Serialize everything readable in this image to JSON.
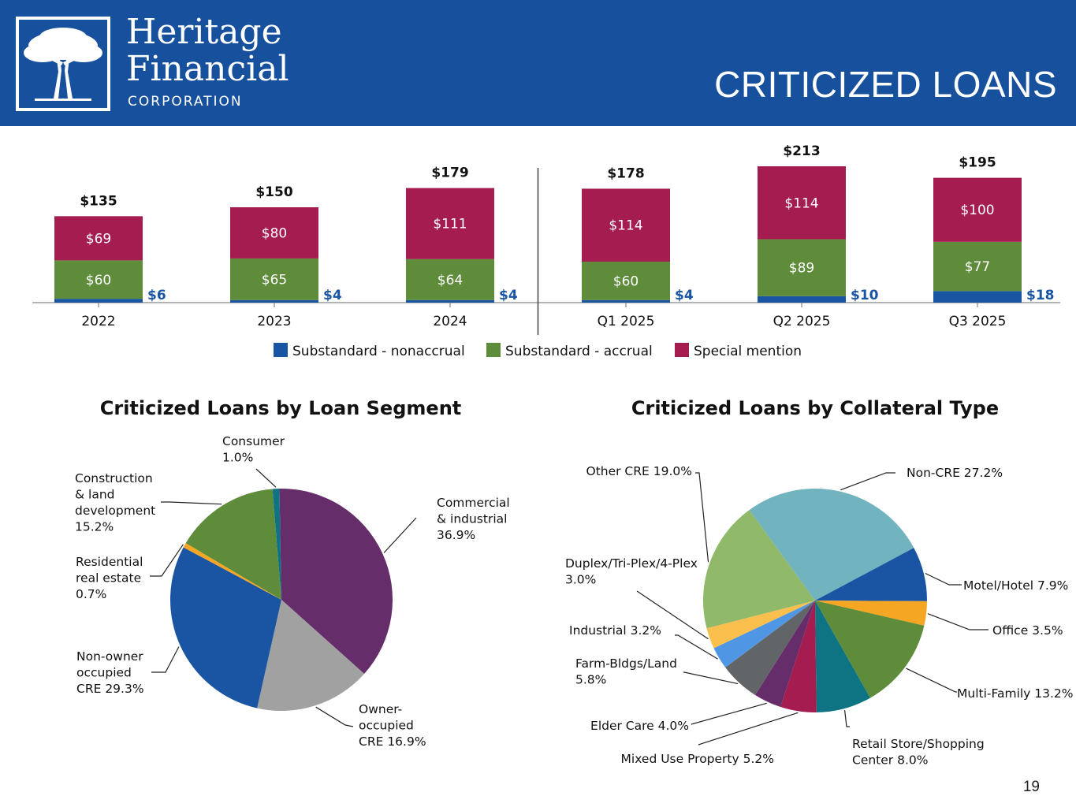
{
  "header": {
    "brand_line1": "Heritage",
    "brand_line2": "Financial",
    "brand_line3": "CORPORATION",
    "title": "CRITICIZED LOANS"
  },
  "page_number": "19",
  "colors": {
    "header_bg": "#17509c",
    "nonaccrual": "#1a55a3",
    "accrual": "#5e8c3a",
    "special": "#a51c50"
  },
  "chart_data": [
    {
      "type": "bar",
      "stacked": true,
      "title": "",
      "categories": [
        "2022",
        "2023",
        "2024",
        "Q1 2025",
        "Q2 2025",
        "Q3 2025"
      ],
      "series": [
        {
          "name": "Substandard - nonaccrual",
          "color": "#1a55a3",
          "values": [
            6,
            4,
            4,
            4,
            10,
            18
          ],
          "labels": [
            "$6",
            "$4",
            "$4",
            "$4",
            "$10",
            "$18"
          ]
        },
        {
          "name": "Substandard - accrual",
          "color": "#5e8c3a",
          "values": [
            60,
            65,
            64,
            60,
            89,
            77
          ],
          "labels": [
            "$60",
            "$65",
            "$64",
            "$60",
            "$89",
            "$77"
          ]
        },
        {
          "name": "Special mention",
          "color": "#a51c50",
          "values": [
            69,
            80,
            111,
            114,
            114,
            100
          ],
          "labels": [
            "$69",
            "$80",
            "$111",
            "$114",
            "$114",
            "$100"
          ]
        }
      ],
      "totals": [
        135,
        150,
        179,
        178,
        213,
        195
      ],
      "total_labels": [
        "$135",
        "$150",
        "$179",
        "$178",
        "$213",
        "$195"
      ],
      "ylim": [
        0,
        213
      ],
      "divider_after": "2024",
      "legend_position": "bottom"
    },
    {
      "type": "pie",
      "title": "Criticized Loans by Loan Segment",
      "slices": [
        {
          "name": "Commercial & industrial",
          "value": 36.9,
          "color": "#652d6a",
          "label_lines": [
            "Commercial",
            "& industrial",
            "36.9%"
          ]
        },
        {
          "name": "Owner-occupied CRE",
          "value": 16.9,
          "color": "#a1a1a1",
          "label_lines": [
            "Owner-",
            "occupied",
            "CRE 16.9%"
          ]
        },
        {
          "name": "Non-owner occupied CRE",
          "value": 29.3,
          "color": "#1a55a3",
          "label_lines": [
            "Non-owner",
            "occupied",
            "CRE 29.3%"
          ]
        },
        {
          "name": "Residential real estate",
          "value": 0.7,
          "color": "#f5a623",
          "label_lines": [
            "Residential",
            "real estate",
            "0.7%"
          ]
        },
        {
          "name": "Construction & land development",
          "value": 15.2,
          "color": "#5e8c3a",
          "label_lines": [
            "Construction",
            "& land",
            "development",
            "15.2%"
          ]
        },
        {
          "name": "Consumer",
          "value": 1.0,
          "color": "#0e7382",
          "label_lines": [
            "Consumer",
            "1.0%"
          ]
        }
      ]
    },
    {
      "type": "pie",
      "title": "Criticized Loans by Collateral Type",
      "slices": [
        {
          "name": "Non-CRE",
          "value": 27.2,
          "color": "#72b3c0",
          "label_lines": [
            "Non-CRE 27.2%"
          ]
        },
        {
          "name": "Motel/Hotel",
          "value": 7.9,
          "color": "#1a55a3",
          "label_lines": [
            "Motel/Hotel 7.9%"
          ]
        },
        {
          "name": "Office",
          "value": 3.5,
          "color": "#f5a623",
          "label_lines": [
            "Office 3.5%"
          ]
        },
        {
          "name": "Multi-Family",
          "value": 13.2,
          "color": "#5e8c3a",
          "label_lines": [
            "Multi-Family 13.2%"
          ]
        },
        {
          "name": "Retail Store/Shopping Center",
          "value": 8.0,
          "color": "#0e7382",
          "label_lines": [
            "Retail Store/Shopping",
            "Center 8.0%"
          ]
        },
        {
          "name": "Mixed Use Property",
          "value": 5.2,
          "color": "#a51c50",
          "label_lines": [
            "Mixed Use Property 5.2%"
          ]
        },
        {
          "name": "Elder Care",
          "value": 4.0,
          "color": "#652d6a",
          "label_lines": [
            "Elder Care 4.0%"
          ]
        },
        {
          "name": "Farm-Bldgs/Land",
          "value": 5.8,
          "color": "#626567",
          "label_lines": [
            "Farm-Bldgs/Land",
            "5.8%"
          ]
        },
        {
          "name": "Industrial",
          "value": 3.2,
          "color": "#4f96e4",
          "label_lines": [
            "Industrial 3.2%"
          ]
        },
        {
          "name": "Duplex/Tri-Plex/4-Plex",
          "value": 3.0,
          "color": "#fbbf4e",
          "label_lines": [
            "Duplex/Tri-Plex/4-Plex",
            "3.0%"
          ]
        },
        {
          "name": "Other CRE",
          "value": 19.0,
          "color": "#90b96a",
          "label_lines": [
            "Other CRE 19.0%"
          ]
        }
      ]
    }
  ]
}
